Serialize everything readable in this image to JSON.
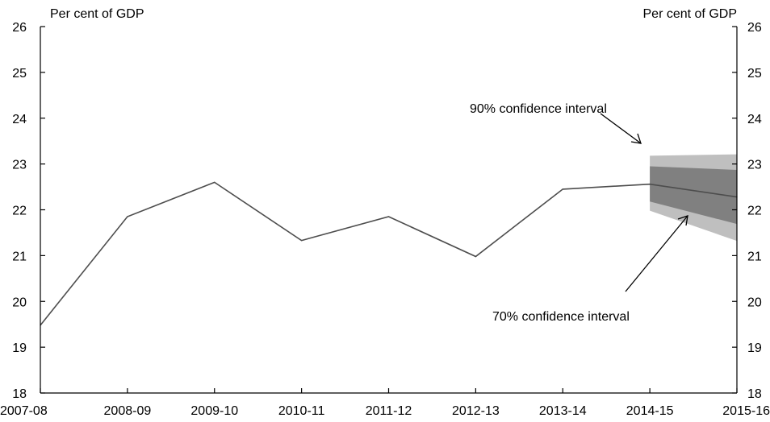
{
  "chart_data": {
    "type": "line",
    "title": "",
    "xlabel": "",
    "ylabel_left": "Per cent of GDP",
    "ylabel_right": "Per cent of GDP",
    "ylim": [
      18,
      26
    ],
    "yticks": [
      18,
      19,
      20,
      21,
      22,
      23,
      24,
      25,
      26
    ],
    "categories": [
      "2007-08",
      "2008-09",
      "2009-10",
      "2010-11",
      "2011-12",
      "2012-13",
      "2013-14",
      "2014-15",
      "2015-16"
    ],
    "series": [
      {
        "values": [
          19.48,
          21.85,
          22.6,
          21.33,
          21.85,
          20.98,
          22.45,
          22.56,
          22.28
        ],
        "color": "#4d4d4d"
      }
    ],
    "bands": [
      {
        "label": "90% confidence interval",
        "color": "#bfbfbf",
        "start_index": 7,
        "lower": [
          21.98,
          21.32
        ],
        "upper": [
          23.18,
          23.21
        ]
      },
      {
        "label": "70% confidence interval",
        "color": "#808080",
        "start_index": 7,
        "lower": [
          22.18,
          21.69
        ],
        "upper": [
          22.95,
          22.87
        ]
      }
    ],
    "grid": false,
    "legend": "none"
  }
}
